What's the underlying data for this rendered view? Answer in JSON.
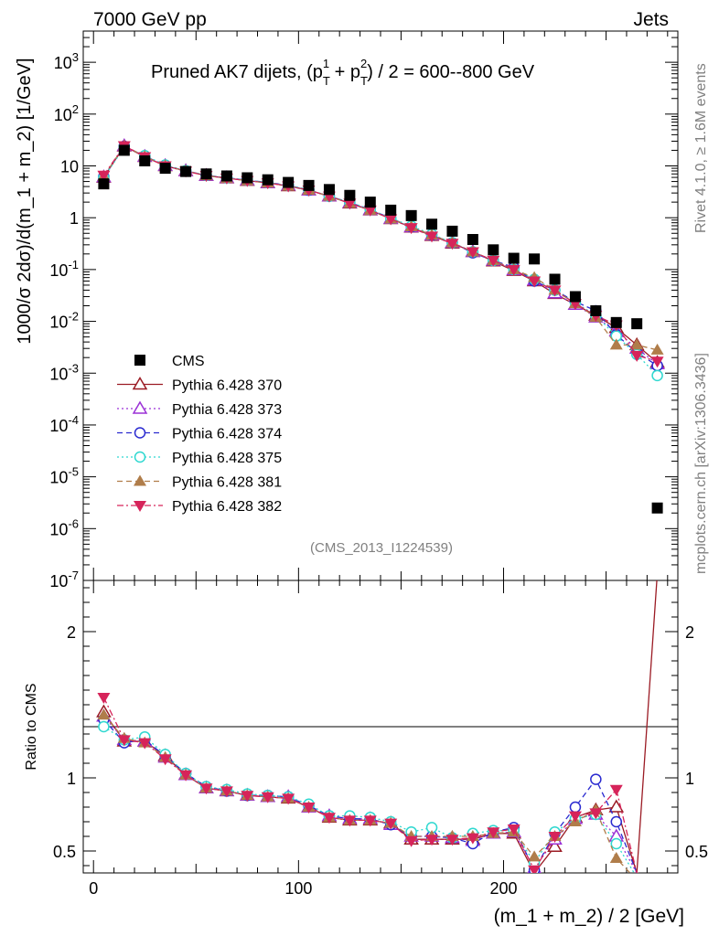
{
  "header": {
    "left": "7000 GeV pp",
    "right": "Jets",
    "side_top": "Rivet 4.1.0, ≥ 1.6M events",
    "side_bottom": "mcplots.cern.ch [arXiv:1306.3436]",
    "analysis_id": "(CMS_2013_I1224539)"
  },
  "colors": {
    "CMS": "#000000",
    "Pythia 6.428 370": "#9b1b24",
    "Pythia 6.428 373": "#9b30d6",
    "Pythia 6.428 374": "#2a2ad0",
    "Pythia 6.428 375": "#2fd8d0",
    "Pythia 6.428 381": "#b07d4a",
    "Pythia 6.428 382": "#d6245a"
  },
  "chart_data": [
    {
      "type": "scatter",
      "panel": "main",
      "title": "Pruned AK7 dijets, (p_T^1 + p_T^2) / 2 = 600--800 GeV",
      "title_parts": {
        "prefix": "Pruned AK7 dijets, (p",
        "sub": "T",
        "sup1": "1",
        "plus": " + p",
        "sup2": "2",
        "suffix": ") / 2 = 600--800 GeV"
      },
      "ylabel": "1000/σ  2dσ)/d(m_1 + m_2) [1/GeV]",
      "yscale": "log",
      "ylim": [
        1e-07,
        4000
      ],
      "xlim": [
        -5,
        285
      ],
      "y_ticks": [
        "10^-7",
        "10^-6",
        "10^-5",
        "10^-4",
        "10^-3",
        "10^-2",
        "10^-1",
        "1",
        "10",
        "10^2",
        "10^3"
      ],
      "x": [
        5,
        15,
        25,
        35,
        45,
        55,
        65,
        75,
        85,
        95,
        105,
        115,
        125,
        135,
        145,
        155,
        165,
        175,
        185,
        195,
        205,
        215,
        225,
        235,
        245,
        255,
        265,
        275
      ],
      "series": [
        {
          "name": "CMS",
          "marker": "square",
          "values": [
            4.5,
            20,
            12.5,
            9.0,
            7.8,
            7.0,
            6.4,
            5.9,
            5.4,
            4.8,
            4.2,
            3.5,
            2.7,
            2.0,
            1.4,
            1.1,
            0.75,
            0.55,
            0.38,
            0.24,
            0.165,
            0.16,
            0.065,
            0.03,
            0.016,
            0.0095,
            0.009,
            2.5e-06
          ]
        },
        {
          "name": "Pythia 6.428 370",
          "marker": "triangle-open",
          "linestyle": "solid",
          "values": [
            6.0,
            24,
            15,
            10,
            8.0,
            6.5,
            5.8,
            5.2,
            4.7,
            4.1,
            3.4,
            2.6,
            1.9,
            1.4,
            0.95,
            0.65,
            0.45,
            0.32,
            0.22,
            0.145,
            0.095,
            0.06,
            0.034,
            0.021,
            0.013,
            0.0075,
            0.0035,
            0.0016
          ]
        },
        {
          "name": "Pythia 6.428 373",
          "marker": "triangle-open",
          "linestyle": "dotted",
          "values": [
            6.1,
            24.5,
            15.2,
            10.1,
            8.0,
            6.5,
            5.9,
            5.3,
            4.7,
            4.2,
            3.4,
            2.6,
            1.95,
            1.42,
            0.96,
            0.66,
            0.46,
            0.33,
            0.22,
            0.15,
            0.098,
            0.062,
            0.035,
            0.021,
            0.012,
            0.0065,
            0.003,
            0.0015
          ]
        },
        {
          "name": "Pythia 6.428 374",
          "marker": "circle-open",
          "linestyle": "dashed",
          "values": [
            6.2,
            24,
            15.5,
            10.2,
            8.0,
            6.6,
            5.9,
            5.3,
            4.8,
            4.2,
            3.4,
            2.6,
            1.95,
            1.45,
            0.97,
            0.67,
            0.46,
            0.33,
            0.21,
            0.15,
            0.11,
            0.06,
            0.04,
            0.024,
            0.016,
            0.0055,
            0.0025,
            0.0014
          ]
        },
        {
          "name": "Pythia 6.428 375",
          "marker": "circle-open",
          "linestyle": "dotted",
          "values": [
            5.9,
            23,
            15.8,
            10.4,
            8.1,
            6.6,
            5.9,
            5.3,
            4.8,
            4.2,
            3.5,
            2.6,
            2.0,
            1.45,
            0.98,
            0.69,
            0.48,
            0.33,
            0.22,
            0.15,
            0.1,
            0.065,
            0.04,
            0.023,
            0.013,
            0.0052,
            0.0023,
            0.0009
          ]
        },
        {
          "name": "Pythia 6.428 381",
          "marker": "triangle-filled",
          "linestyle": "dashed",
          "values": [
            6.3,
            24.5,
            15.2,
            10.1,
            8.0,
            6.5,
            5.8,
            5.2,
            4.7,
            4.1,
            3.4,
            2.6,
            1.9,
            1.4,
            0.95,
            0.67,
            0.46,
            0.33,
            0.22,
            0.15,
            0.1,
            0.07,
            0.04,
            0.022,
            0.012,
            0.0035,
            0.0035,
            0.0028
          ]
        },
        {
          "name": "Pythia 6.428 382",
          "marker": "triangle-down-filled",
          "linestyle": "dashdot",
          "values": [
            6.6,
            24.5,
            15.0,
            10.0,
            7.9,
            6.5,
            5.8,
            5.2,
            4.7,
            4.1,
            3.4,
            2.6,
            1.9,
            1.4,
            0.95,
            0.64,
            0.44,
            0.32,
            0.22,
            0.15,
            0.1,
            0.06,
            0.04,
            0.022,
            0.013,
            0.0085,
            0.0022,
            0.0017
          ]
        }
      ]
    },
    {
      "type": "line",
      "panel": "ratio",
      "ylabel": "Ratio to CMS",
      "xlabel": "(m_1 + m_2) / 2 [GeV]",
      "ylim": [
        0.35,
        2.35
      ],
      "xlim": [
        -5,
        285
      ],
      "y_ticks": [
        0.5,
        1,
        2
      ],
      "x_ticks": [
        0,
        100,
        200
      ],
      "x": [
        5,
        15,
        25,
        35,
        45,
        55,
        65,
        75,
        85,
        95,
        105,
        115,
        125,
        135,
        145,
        155,
        165,
        175,
        185,
        195,
        205,
        215,
        225,
        235,
        245,
        255,
        265,
        275
      ],
      "series": [
        {
          "name": "Pythia 6.428 370",
          "values": [
            1.45,
            1.25,
            1.25,
            1.15,
            1.02,
            0.93,
            0.91,
            0.88,
            0.87,
            0.86,
            0.8,
            0.73,
            0.71,
            0.71,
            0.69,
            0.58,
            0.58,
            0.58,
            0.58,
            0.62,
            0.62,
            0.35,
            0.53,
            0.73,
            0.78,
            0.8,
            0.35,
            2.4
          ]
        },
        {
          "name": "Pythia 6.428 373",
          "values": [
            1.42,
            1.26,
            1.25,
            1.14,
            1.02,
            0.93,
            0.91,
            0.88,
            0.87,
            0.87,
            0.8,
            0.74,
            0.72,
            0.72,
            0.68,
            0.6,
            0.6,
            0.59,
            0.57,
            0.62,
            0.63,
            0.38,
            0.58,
            0.72,
            0.75,
            0.6,
            0.35,
            0.3
          ]
        },
        {
          "name": "Pythia 6.428 374",
          "values": [
            1.4,
            1.24,
            1.26,
            1.15,
            1.03,
            0.94,
            0.91,
            0.88,
            0.88,
            0.87,
            0.81,
            0.74,
            0.72,
            0.72,
            0.68,
            0.6,
            0.6,
            0.59,
            0.55,
            0.63,
            0.66,
            0.37,
            0.62,
            0.8,
            0.99,
            0.7,
            0.35,
            0.3
          ]
        },
        {
          "name": "Pythia 6.428 375",
          "values": [
            1.35,
            1.26,
            1.28,
            1.16,
            1.03,
            0.94,
            0.92,
            0.89,
            0.88,
            0.87,
            0.82,
            0.74,
            0.74,
            0.73,
            0.7,
            0.63,
            0.66,
            0.59,
            0.62,
            0.64,
            0.64,
            0.42,
            0.63,
            0.72,
            0.75,
            0.55,
            0.32,
            0.3
          ]
        },
        {
          "name": "Pythia 6.428 381",
          "values": [
            1.43,
            1.27,
            1.24,
            1.14,
            1.02,
            0.93,
            0.91,
            0.88,
            0.87,
            0.86,
            0.8,
            0.73,
            0.71,
            0.71,
            0.69,
            0.6,
            0.6,
            0.6,
            0.6,
            0.62,
            0.63,
            0.46,
            0.6,
            0.7,
            0.78,
            0.45,
            0.3,
            0.3
          ]
        },
        {
          "name": "Pythia 6.428 382",
          "values": [
            1.55,
            1.26,
            1.24,
            1.13,
            1.02,
            0.93,
            0.91,
            0.88,
            0.87,
            0.86,
            0.8,
            0.73,
            0.71,
            0.71,
            0.69,
            0.57,
            0.58,
            0.58,
            0.59,
            0.63,
            0.65,
            0.37,
            0.6,
            0.74,
            0.76,
            0.92,
            0.35,
            0.3
          ]
        }
      ]
    }
  ]
}
